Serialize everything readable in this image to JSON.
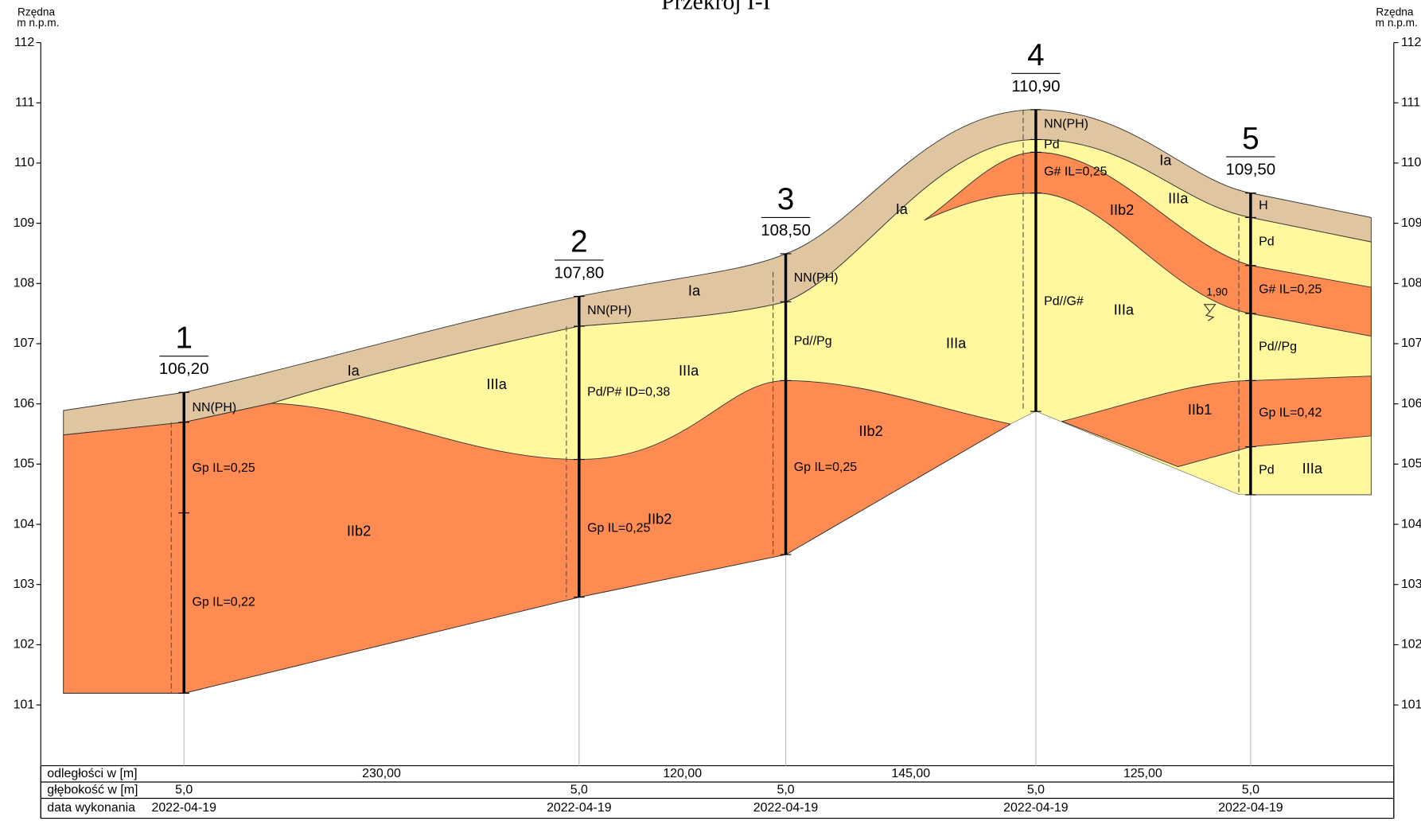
{
  "title": "Przekrój I-I",
  "axis_label_1": "Rzędna",
  "axis_label_2": "m n.p.m.",
  "yticks": [
    101,
    102,
    103,
    104,
    105,
    106,
    107,
    108,
    109,
    110,
    111,
    112
  ],
  "boreholes": [
    {
      "number": "1",
      "elevation": "106,20",
      "depth": "5,0",
      "date": "2022-04-19",
      "labels": [
        "NN(PH)",
        "Gp  IL=0,25",
        "Gp  IL=0,22"
      ]
    },
    {
      "number": "2",
      "elevation": "107,80",
      "depth": "5,0",
      "date": "2022-04-19",
      "labels": [
        "NN(PH)",
        "Pd/P# ID=0,38",
        "Gp  IL=0,25"
      ]
    },
    {
      "number": "3",
      "elevation": "108,50",
      "depth": "5,0",
      "date": "2022-04-19",
      "labels": [
        "NN(PH)",
        "Pd//Pg",
        "Gp  IL=0,25"
      ]
    },
    {
      "number": "4",
      "elevation": "110,90",
      "depth": "5,0",
      "date": "2022-04-19",
      "labels": [
        "NN(PH)",
        "Pd",
        "G#  IL=0,25",
        "Pd//G#"
      ]
    },
    {
      "number": "5",
      "elevation": "109,50",
      "depth": "5,0",
      "date": "2022-04-19",
      "labels": [
        "H",
        "Pd",
        "G#  IL=0,25",
        "Pd//Pg",
        "Gp  IL=0,42",
        "Pd"
      ]
    }
  ],
  "distances": [
    "230,00",
    "120,00",
    "145,00",
    "125,00"
  ],
  "table_rows": [
    "odległości w [m]",
    "głębokość w [m]",
    "data wykonania"
  ],
  "layer_labels": [
    "Ia",
    "Ia",
    "Ia",
    "Ia",
    "IIIa",
    "IIIa",
    "IIIa",
    "IIIa",
    "IIIa",
    "IIIa",
    "IIb2",
    "IIb2",
    "IIb2",
    "IIb2",
    "IIb1"
  ],
  "water_level": "1,90"
}
